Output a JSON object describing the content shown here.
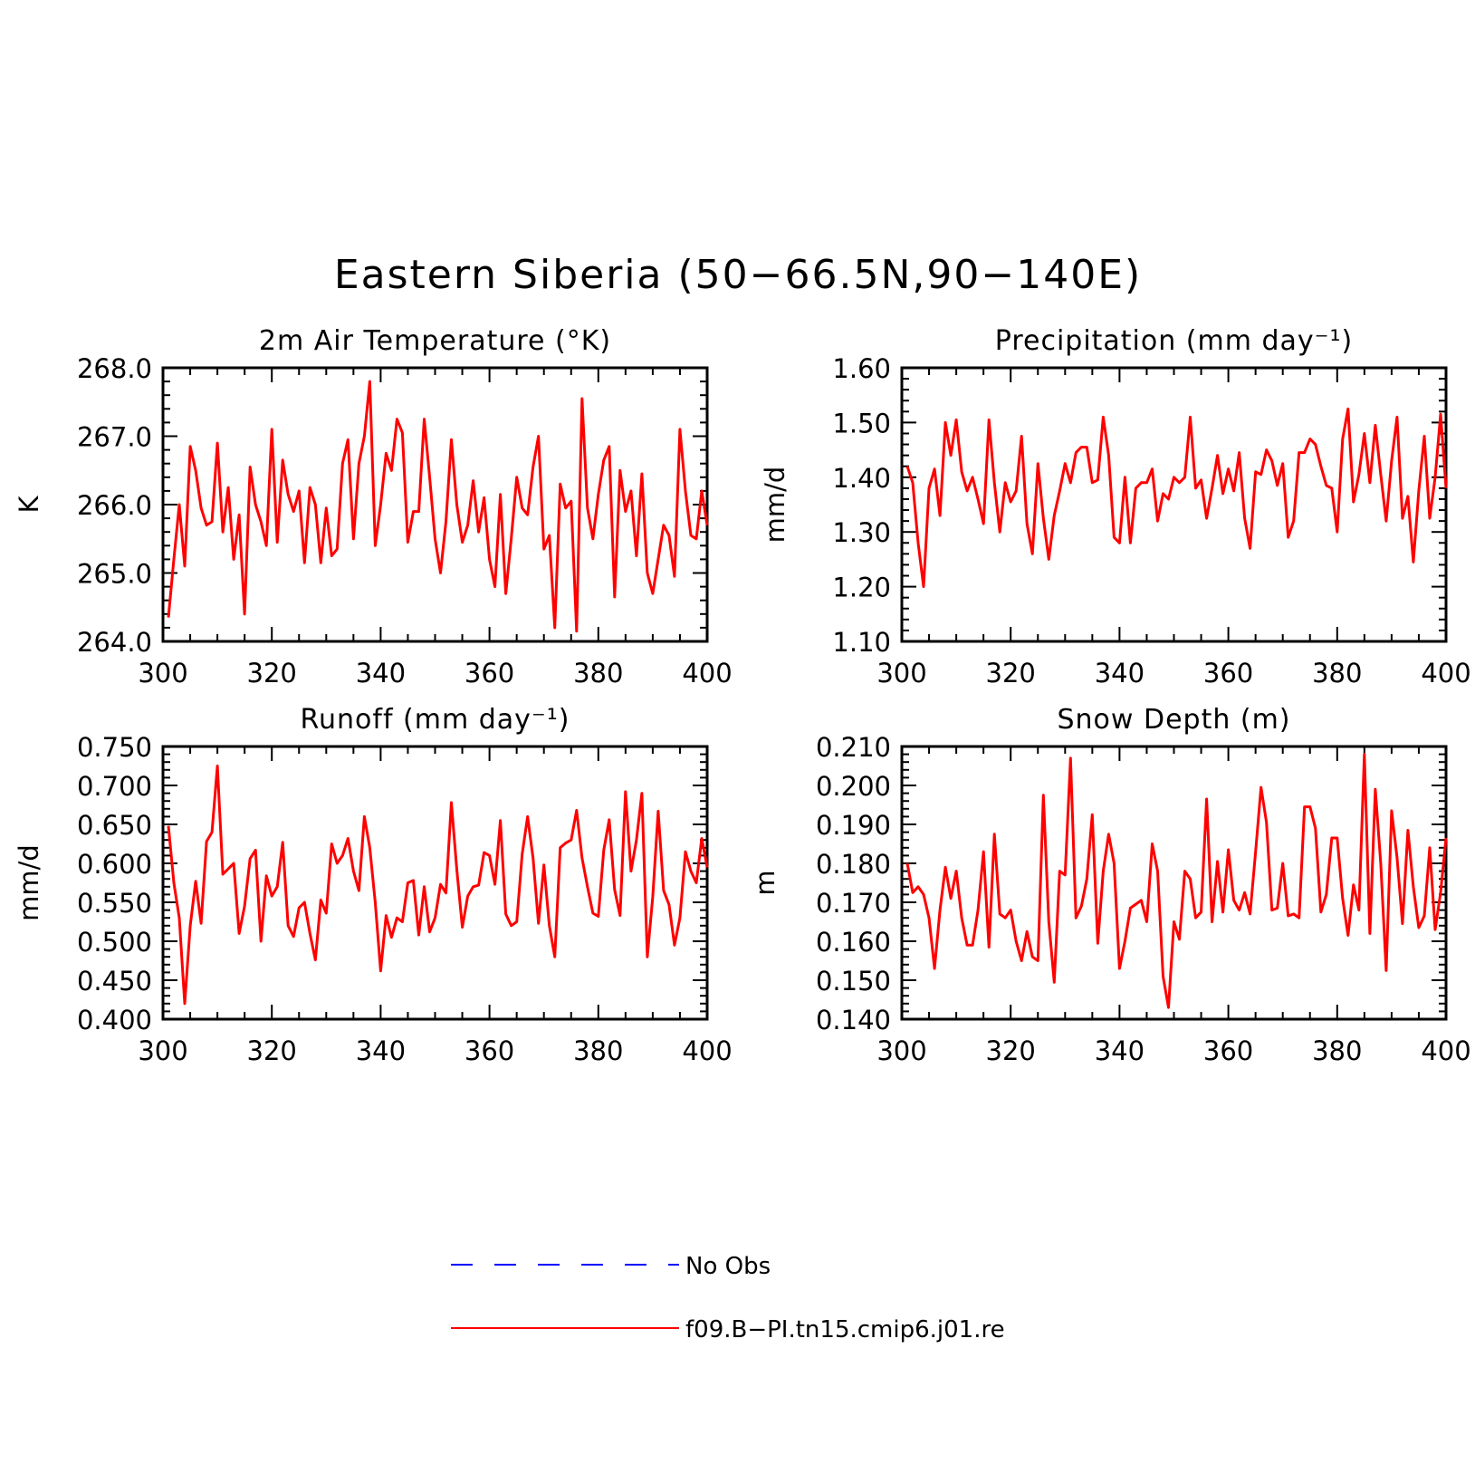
{
  "title": "Eastern Siberia (50−66.5N,90−140E)",
  "colors": {
    "model": "#ff0000",
    "obs": "#0000ff",
    "axes": "#000000"
  },
  "legend": [
    {
      "label": "No Obs",
      "color": "#0000ff",
      "dash": "dashed"
    },
    {
      "label": "f09.B−PI.tn15.cmip6.j01.re",
      "color": "#ff0000",
      "dash": "solid"
    }
  ],
  "chart_data": [
    {
      "type": "line",
      "title": "2m Air Temperature (°K)",
      "ylabel": "K",
      "xlabel": "",
      "xlim": [
        300,
        400
      ],
      "ylim": [
        264.0,
        268.0
      ],
      "xticks": [
        "300",
        "320",
        "340",
        "360",
        "380",
        "400"
      ],
      "yticks": [
        "264.0",
        "265.0",
        "266.0",
        "267.0",
        "268.0"
      ],
      "series": [
        {
          "name": "f09.B−PI.tn15.cmip6.j01.re",
          "color": "#ff0000",
          "x_start": 301,
          "values": [
            264.35,
            265.2,
            266.0,
            265.1,
            266.85,
            266.5,
            265.95,
            265.7,
            265.75,
            266.9,
            265.6,
            266.25,
            265.2,
            265.85,
            264.4,
            266.55,
            266.0,
            265.75,
            265.4,
            267.1,
            265.45,
            266.65,
            266.15,
            265.9,
            266.2,
            265.15,
            266.25,
            266.0,
            265.15,
            265.95,
            265.25,
            265.35,
            266.6,
            266.95,
            265.5,
            266.6,
            267.0,
            267.8,
            265.4,
            266.0,
            266.75,
            266.5,
            267.25,
            267.05,
            265.45,
            265.9,
            265.9,
            267.25,
            266.4,
            265.5,
            265.0,
            265.75,
            266.95,
            266.0,
            265.45,
            265.7,
            266.35,
            265.6,
            266.1,
            265.2,
            264.8,
            266.15,
            264.7,
            265.5,
            266.4,
            265.95,
            265.85,
            266.55,
            267.0,
            265.35,
            265.55,
            264.2,
            266.3,
            265.95,
            266.05,
            264.15,
            267.55,
            265.95,
            265.5,
            266.15,
            266.65,
            266.85,
            264.65,
            266.5,
            265.9,
            266.2,
            265.25,
            266.45,
            265.0,
            264.7,
            265.2,
            265.7,
            265.55,
            264.95,
            267.1,
            266.2,
            265.55,
            265.5,
            266.2,
            265.7
          ]
        }
      ]
    },
    {
      "type": "line",
      "title": "Precipitation (mm day⁻¹)",
      "ylabel": "mm/d",
      "xlabel": "",
      "xlim": [
        300,
        400
      ],
      "ylim": [
        1.1,
        1.6
      ],
      "xticks": [
        "300",
        "320",
        "340",
        "360",
        "380",
        "400"
      ],
      "yticks": [
        "1.10",
        "1.20",
        "1.30",
        "1.40",
        "1.50",
        "1.60"
      ],
      "series": [
        {
          "name": "f09.B−PI.tn15.cmip6.j01.re",
          "color": "#ff0000",
          "x_start": 301,
          "values": [
            1.42,
            1.39,
            1.28,
            1.2,
            1.38,
            1.415,
            1.33,
            1.5,
            1.44,
            1.505,
            1.41,
            1.375,
            1.4,
            1.36,
            1.315,
            1.505,
            1.39,
            1.3,
            1.39,
            1.355,
            1.375,
            1.475,
            1.315,
            1.26,
            1.425,
            1.325,
            1.25,
            1.33,
            1.375,
            1.425,
            1.39,
            1.445,
            1.455,
            1.455,
            1.39,
            1.395,
            1.51,
            1.44,
            1.29,
            1.28,
            1.4,
            1.28,
            1.38,
            1.39,
            1.39,
            1.415,
            1.32,
            1.37,
            1.36,
            1.4,
            1.39,
            1.4,
            1.51,
            1.38,
            1.395,
            1.325,
            1.38,
            1.44,
            1.37,
            1.415,
            1.375,
            1.445,
            1.325,
            1.27,
            1.41,
            1.405,
            1.45,
            1.43,
            1.385,
            1.425,
            1.29,
            1.32,
            1.445,
            1.445,
            1.47,
            1.46,
            1.42,
            1.385,
            1.38,
            1.3,
            1.47,
            1.525,
            1.355,
            1.405,
            1.48,
            1.39,
            1.495,
            1.405,
            1.32,
            1.43,
            1.51,
            1.325,
            1.365,
            1.245,
            1.375,
            1.475,
            1.325,
            1.4,
            1.515,
            1.38
          ]
        }
      ]
    },
    {
      "type": "line",
      "title": "Runoff (mm day⁻¹)",
      "ylabel": "mm/d",
      "xlabel": "",
      "xlim": [
        300,
        400
      ],
      "ylim": [
        0.4,
        0.75
      ],
      "xticks": [
        "300",
        "320",
        "340",
        "360",
        "380",
        "400"
      ],
      "yticks": [
        "0.400",
        "0.450",
        "0.500",
        "0.550",
        "0.600",
        "0.650",
        "0.700",
        "0.750"
      ],
      "series": [
        {
          "name": "f09.B−PI.tn15.cmip6.j01.re",
          "color": "#ff0000",
          "x_start": 301,
          "values": [
            0.648,
            0.575,
            0.53,
            0.42,
            0.52,
            0.577,
            0.523,
            0.628,
            0.64,
            0.725,
            0.586,
            0.593,
            0.6,
            0.51,
            0.545,
            0.606,
            0.617,
            0.5,
            0.584,
            0.558,
            0.57,
            0.627,
            0.52,
            0.506,
            0.543,
            0.55,
            0.51,
            0.476,
            0.553,
            0.536,
            0.625,
            0.6,
            0.61,
            0.632,
            0.59,
            0.565,
            0.66,
            0.62,
            0.55,
            0.462,
            0.533,
            0.505,
            0.53,
            0.525,
            0.575,
            0.578,
            0.508,
            0.57,
            0.512,
            0.53,
            0.573,
            0.562,
            0.678,
            0.592,
            0.518,
            0.558,
            0.57,
            0.572,
            0.614,
            0.61,
            0.573,
            0.655,
            0.535,
            0.52,
            0.525,
            0.612,
            0.66,
            0.607,
            0.523,
            0.598,
            0.52,
            0.48,
            0.62,
            0.626,
            0.63,
            0.668,
            0.607,
            0.57,
            0.536,
            0.532,
            0.617,
            0.656,
            0.566,
            0.533,
            0.692,
            0.59,
            0.63,
            0.69,
            0.48,
            0.557,
            0.667,
            0.565,
            0.547,
            0.495,
            0.53,
            0.615,
            0.59,
            0.575,
            0.632,
            0.595
          ]
        }
      ]
    },
    {
      "type": "line",
      "title": "Snow Depth (m)",
      "ylabel": "m",
      "xlabel": "",
      "xlim": [
        300,
        400
      ],
      "ylim": [
        0.14,
        0.21
      ],
      "xticks": [
        "300",
        "320",
        "340",
        "360",
        "380",
        "400"
      ],
      "yticks": [
        "0.140",
        "0.150",
        "0.160",
        "0.170",
        "0.180",
        "0.190",
        "0.200",
        "0.210"
      ],
      "series": [
        {
          "name": "f09.B−PI.tn15.cmip6.j01.re",
          "color": "#ff0000",
          "x_start": 301,
          "values": [
            0.18,
            0.1725,
            0.174,
            0.172,
            0.166,
            0.153,
            0.168,
            0.179,
            0.171,
            0.178,
            0.166,
            0.159,
            0.159,
            0.168,
            0.183,
            0.1585,
            0.1875,
            0.167,
            0.166,
            0.168,
            0.16,
            0.155,
            0.1625,
            0.156,
            0.155,
            0.1975,
            0.165,
            0.1495,
            0.178,
            0.177,
            0.207,
            0.166,
            0.169,
            0.176,
            0.1925,
            0.1595,
            0.178,
            0.1875,
            0.18,
            0.153,
            0.16,
            0.1685,
            0.1695,
            0.1705,
            0.165,
            0.185,
            0.178,
            0.151,
            0.143,
            0.165,
            0.1605,
            0.178,
            0.176,
            0.166,
            0.1675,
            0.1965,
            0.165,
            0.1805,
            0.1675,
            0.1835,
            0.1705,
            0.168,
            0.1725,
            0.167,
            0.183,
            0.1995,
            0.1905,
            0.168,
            0.1685,
            0.18,
            0.1665,
            0.167,
            0.166,
            0.1945,
            0.1945,
            0.189,
            0.1675,
            0.172,
            0.1865,
            0.1865,
            0.171,
            0.1615,
            0.1745,
            0.168,
            0.208,
            0.162,
            0.199,
            0.18,
            0.1525,
            0.1935,
            0.1815,
            0.1645,
            0.1885,
            0.174,
            0.1635,
            0.1665,
            0.184,
            0.163,
            0.1725,
            0.1865
          ]
        }
      ]
    }
  ]
}
